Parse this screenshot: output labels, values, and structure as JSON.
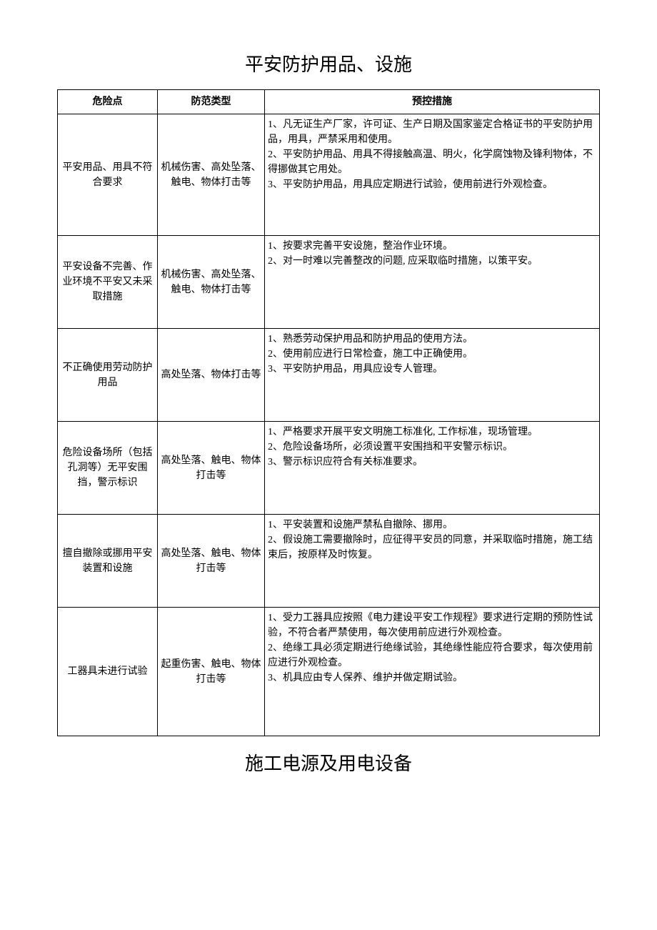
{
  "title1": "平安防护用品、设施",
  "title2": "施工电源及用电设备",
  "table": {
    "headers": {
      "col1": "危险点",
      "col2": "防范类型",
      "col3": "预控措施"
    },
    "rows": [
      {
        "risk": "平安用品、用具不符合要求",
        "type": "机械伤害、高处坠落、触电、物体打击等",
        "measure": "1、凡无证生产厂家，许可证、生产日期及国家鉴定合格证书的平安防护用品，用具，严禁采用和使用。\n2、平安防护用品、用具不得接触高温、明火，化学腐蚀物及锋利物体，不得挪做其它用处。\n3、平安防护用品，用具应定期进行试验，使用前进行外观检查。"
      },
      {
        "risk": "平安设备不完善、作业环境不平安又未采取措施",
        "type": "机械伤害、高处坠落、触电、物体打击等",
        "measure": "1、按要求完善平安设施，整治作业环境。\n2、对一时难以完善整改的问题, 应采取临时措施，以策平安。"
      },
      {
        "risk": "不正确使用劳动防护用品",
        "type": "高处坠落、物体打击等",
        "measure": "1、熟悉劳动保护用品和防护用品的使用方法。\n2、使用前应进行日常检查，施工中正确使用。\n3、平安防护用品，用具应设专人管理。"
      },
      {
        "risk": "危险设备场所（包括孔洞等）无平安围挡，警示标识",
        "type": "高处坠落、触电、物体打击等",
        "measure": "1、严格要求开展平安文明施工标准化, 工作标准，现场管理。\n2、危险设备场所，必须设置平安围挡和平安警示标识。\n3、警示标识应符合有关标准要求。"
      },
      {
        "risk": "擅自撤除或挪用平安装置和设施",
        "type": "高处坠落、触电、物体打击等",
        "measure": "1、平安装置和设施严禁私自撤除、挪用。\n2、假设施工需要撤除时，应征得平安员的同意，并采取临时措施，施工结束后，按原样及时恢复。"
      },
      {
        "risk": "工器具未进行试验",
        "type": "起重伤害、触电、物体打击等",
        "measure": "1、受力工器具应按照《电力建设平安工作规程》要求进行定期的预防性试验，不符合者严禁使用，每次使用前应进行外观检查。\n2、绝缘工具必须定期进行绝缘试验，其绝缘性能应符合要求，每次使用前应进行外观检查。\n3、机具应由专人保养、维护并做定期试验。"
      }
    ]
  }
}
